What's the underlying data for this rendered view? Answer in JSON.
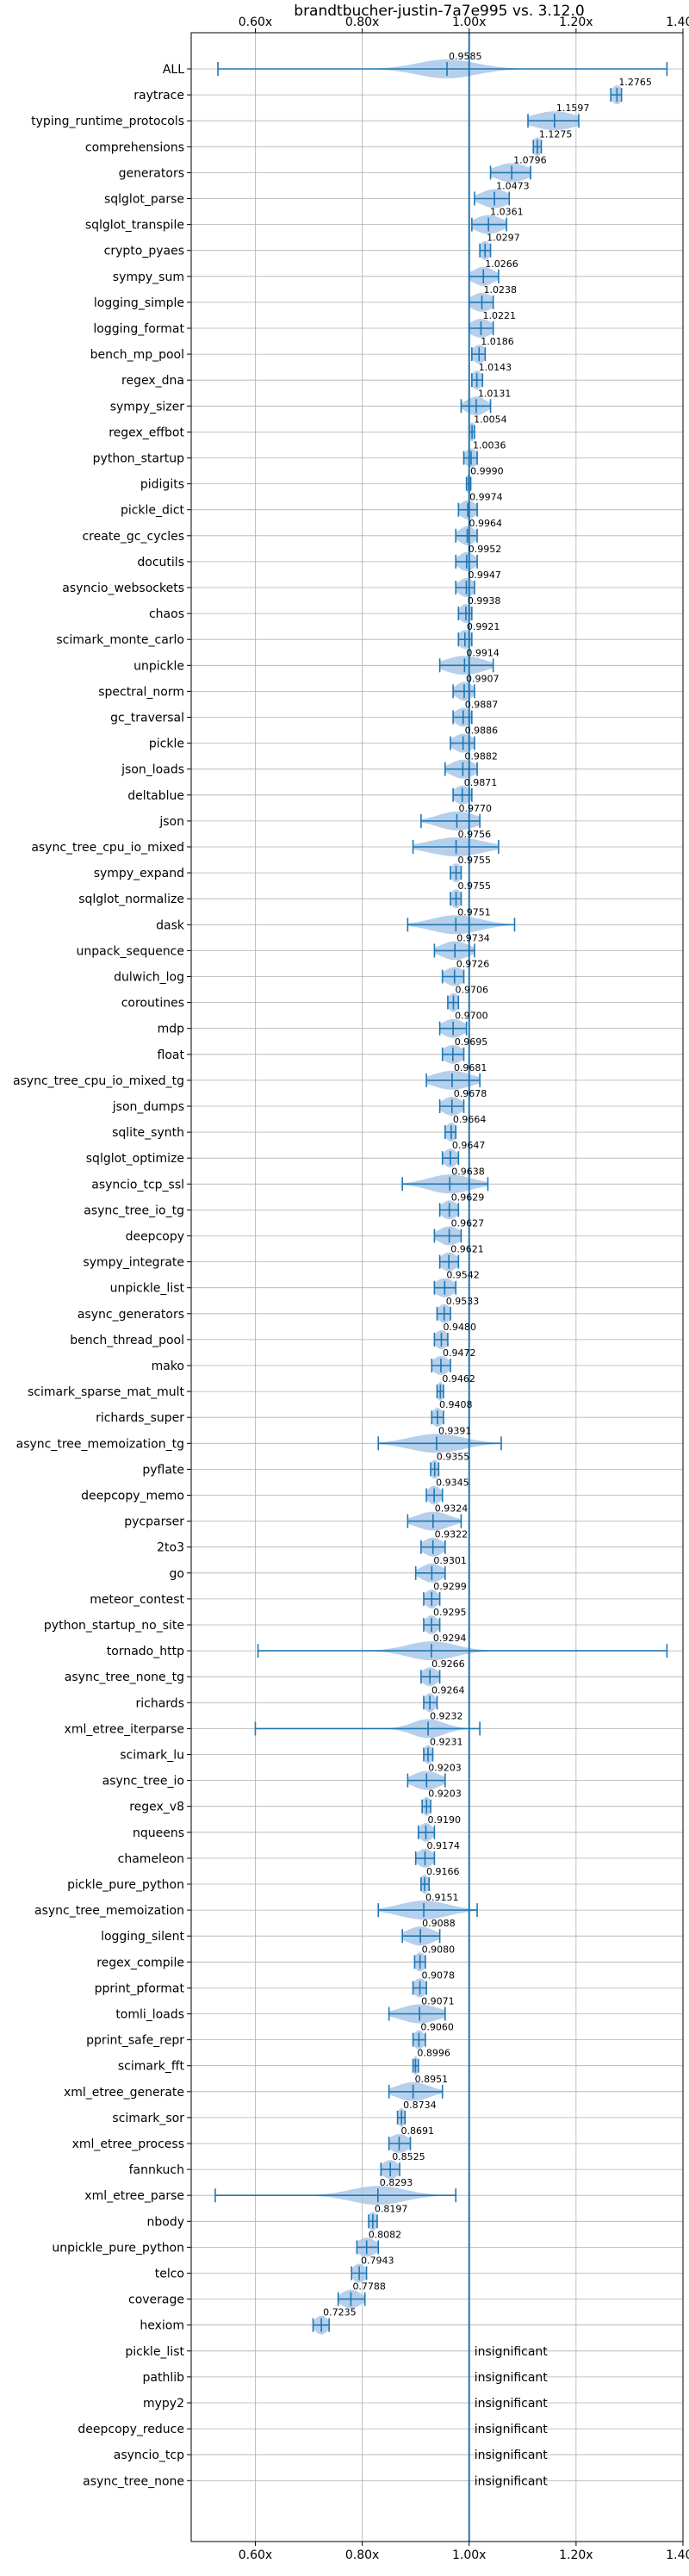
{
  "chart_data": {
    "type": "violin",
    "title": "brandtbucher-justin-7a7e995 vs. 3.12.0",
    "xlim": [
      0.48,
      1.4
    ],
    "x_ticks": [
      "0.60x",
      "0.80x",
      "1.00x",
      "1.20x",
      "1.40x"
    ],
    "x_tick_values": [
      0.6,
      0.8,
      1.0,
      1.2,
      1.4
    ],
    "reference_line": 1.0,
    "grid": true,
    "colors": {
      "accent": "#1f77b4",
      "violin": "#a9c8e8",
      "grid": "#b0b0b0"
    },
    "insignificant_label": "insignificant",
    "benchmarks": [
      {
        "name": "ALL",
        "value": 0.9585,
        "label": "0.9585",
        "min": 0.53,
        "max": 1.37,
        "spread": 0.055
      },
      {
        "name": "raytrace",
        "value": 1.2765,
        "label": "1.2765",
        "min": 1.265,
        "max": 1.285,
        "spread": 0.01
      },
      {
        "name": "typing_runtime_protocols",
        "value": 1.1597,
        "label": "1.1597",
        "min": 1.11,
        "max": 1.205,
        "spread": 0.04
      },
      {
        "name": "comprehensions",
        "value": 1.1275,
        "label": "1.1275",
        "min": 1.12,
        "max": 1.135,
        "spread": 0.008
      },
      {
        "name": "generators",
        "value": 1.0796,
        "label": "1.0796",
        "min": 1.04,
        "max": 1.115,
        "spread": 0.03
      },
      {
        "name": "sqlglot_parse",
        "value": 1.0473,
        "label": "1.0473",
        "min": 1.01,
        "max": 1.075,
        "spread": 0.025
      },
      {
        "name": "sqlglot_transpile",
        "value": 1.0361,
        "label": "1.0361",
        "min": 1.005,
        "max": 1.07,
        "spread": 0.025
      },
      {
        "name": "crypto_pyaes",
        "value": 1.0297,
        "label": "1.0297",
        "min": 1.02,
        "max": 1.04,
        "spread": 0.01
      },
      {
        "name": "sympy_sum",
        "value": 1.0266,
        "label": "1.0266",
        "min": 1.0,
        "max": 1.055,
        "spread": 0.02
      },
      {
        "name": "logging_simple",
        "value": 1.0238,
        "label": "1.0238",
        "min": 1.0,
        "max": 1.045,
        "spread": 0.02
      },
      {
        "name": "logging_format",
        "value": 1.0221,
        "label": "1.0221",
        "min": 1.0,
        "max": 1.045,
        "spread": 0.02
      },
      {
        "name": "bench_mp_pool",
        "value": 1.0186,
        "label": "1.0186",
        "min": 1.005,
        "max": 1.03,
        "spread": 0.012
      },
      {
        "name": "regex_dna",
        "value": 1.0143,
        "label": "1.0143",
        "min": 1.005,
        "max": 1.025,
        "spread": 0.01
      },
      {
        "name": "sympy_sizer",
        "value": 1.0131,
        "label": "1.0131",
        "min": 0.985,
        "max": 1.04,
        "spread": 0.018
      },
      {
        "name": "regex_effbot",
        "value": 1.0054,
        "label": "1.0054",
        "min": 1.0,
        "max": 1.01,
        "spread": 0.006
      },
      {
        "name": "python_startup",
        "value": 1.0036,
        "label": "1.0036",
        "min": 0.99,
        "max": 1.015,
        "spread": 0.012
      },
      {
        "name": "pidigits",
        "value": 0.999,
        "label": "0.9990",
        "min": 0.995,
        "max": 1.003,
        "spread": 0.005
      },
      {
        "name": "pickle_dict",
        "value": 0.9974,
        "label": "0.9974",
        "min": 0.98,
        "max": 1.015,
        "spread": 0.015
      },
      {
        "name": "create_gc_cycles",
        "value": 0.9964,
        "label": "0.9964",
        "min": 0.975,
        "max": 1.015,
        "spread": 0.015
      },
      {
        "name": "docutils",
        "value": 0.9952,
        "label": "0.9952",
        "min": 0.975,
        "max": 1.015,
        "spread": 0.015
      },
      {
        "name": "asyncio_websockets",
        "value": 0.9947,
        "label": "0.9947",
        "min": 0.975,
        "max": 1.01,
        "spread": 0.015
      },
      {
        "name": "chaos",
        "value": 0.9938,
        "label": "0.9938",
        "min": 0.98,
        "max": 1.005,
        "spread": 0.012
      },
      {
        "name": "scimark_monte_carlo",
        "value": 0.9921,
        "label": "0.9921",
        "min": 0.98,
        "max": 1.005,
        "spread": 0.012
      },
      {
        "name": "unpickle",
        "value": 0.9914,
        "label": "0.9914",
        "min": 0.945,
        "max": 1.045,
        "spread": 0.035
      },
      {
        "name": "spectral_norm",
        "value": 0.9907,
        "label": "0.9907",
        "min": 0.97,
        "max": 1.01,
        "spread": 0.015
      },
      {
        "name": "gc_traversal",
        "value": 0.9887,
        "label": "0.9887",
        "min": 0.97,
        "max": 1.005,
        "spread": 0.015
      },
      {
        "name": "pickle",
        "value": 0.9886,
        "label": "0.9886",
        "min": 0.965,
        "max": 1.01,
        "spread": 0.018
      },
      {
        "name": "json_loads",
        "value": 0.9882,
        "label": "0.9882",
        "min": 0.955,
        "max": 1.015,
        "spread": 0.022
      },
      {
        "name": "deltablue",
        "value": 0.9871,
        "label": "0.9871",
        "min": 0.97,
        "max": 1.005,
        "spread": 0.015
      },
      {
        "name": "json",
        "value": 0.977,
        "label": "0.9770",
        "min": 0.91,
        "max": 1.02,
        "spread": 0.035
      },
      {
        "name": "async_tree_cpu_io_mixed",
        "value": 0.9756,
        "label": "0.9756",
        "min": 0.895,
        "max": 1.055,
        "spread": 0.05
      },
      {
        "name": "sympy_expand",
        "value": 0.9755,
        "label": "0.9755",
        "min": 0.965,
        "max": 0.985,
        "spread": 0.01
      },
      {
        "name": "sqlglot_normalize",
        "value": 0.9755,
        "label": "0.9755",
        "min": 0.965,
        "max": 0.985,
        "spread": 0.01
      },
      {
        "name": "dask",
        "value": 0.9751,
        "label": "0.9751",
        "min": 0.885,
        "max": 1.085,
        "spread": 0.045
      },
      {
        "name": "unpack_sequence",
        "value": 0.9734,
        "label": "0.9734",
        "min": 0.935,
        "max": 1.01,
        "spread": 0.025
      },
      {
        "name": "dulwich_log",
        "value": 0.9726,
        "label": "0.9726",
        "min": 0.95,
        "max": 0.99,
        "spread": 0.018
      },
      {
        "name": "coroutines",
        "value": 0.9706,
        "label": "0.9706",
        "min": 0.96,
        "max": 0.98,
        "spread": 0.01
      },
      {
        "name": "mdp",
        "value": 0.97,
        "label": "0.9700",
        "min": 0.945,
        "max": 0.995,
        "spread": 0.02
      },
      {
        "name": "float",
        "value": 0.9695,
        "label": "0.9695",
        "min": 0.95,
        "max": 0.99,
        "spread": 0.018
      },
      {
        "name": "async_tree_cpu_io_mixed_tg",
        "value": 0.9681,
        "label": "0.9681",
        "min": 0.92,
        "max": 1.02,
        "spread": 0.035
      },
      {
        "name": "json_dumps",
        "value": 0.9678,
        "label": "0.9678",
        "min": 0.945,
        "max": 0.99,
        "spread": 0.018
      },
      {
        "name": "sqlite_synth",
        "value": 0.9664,
        "label": "0.9664",
        "min": 0.955,
        "max": 0.975,
        "spread": 0.01
      },
      {
        "name": "sqlglot_optimize",
        "value": 0.9647,
        "label": "0.9647",
        "min": 0.95,
        "max": 0.98,
        "spread": 0.012
      },
      {
        "name": "asyncio_tcp_ssl",
        "value": 0.9638,
        "label": "0.9638",
        "min": 0.875,
        "max": 1.035,
        "spread": 0.04
      },
      {
        "name": "async_tree_io_tg",
        "value": 0.9629,
        "label": "0.9629",
        "min": 0.945,
        "max": 0.98,
        "spread": 0.015
      },
      {
        "name": "deepcopy",
        "value": 0.9627,
        "label": "0.9627",
        "min": 0.935,
        "max": 0.985,
        "spread": 0.02
      },
      {
        "name": "sympy_integrate",
        "value": 0.9621,
        "label": "0.9621",
        "min": 0.945,
        "max": 0.98,
        "spread": 0.015
      },
      {
        "name": "unpickle_list",
        "value": 0.9542,
        "label": "0.9542",
        "min": 0.935,
        "max": 0.975,
        "spread": 0.018
      },
      {
        "name": "async_generators",
        "value": 0.9533,
        "label": "0.9533",
        "min": 0.94,
        "max": 0.965,
        "spread": 0.012
      },
      {
        "name": "bench_thread_pool",
        "value": 0.948,
        "label": "0.9480",
        "min": 0.935,
        "max": 0.96,
        "spread": 0.012
      },
      {
        "name": "mako",
        "value": 0.9472,
        "label": "0.9472",
        "min": 0.93,
        "max": 0.965,
        "spread": 0.015
      },
      {
        "name": "scimark_sparse_mat_mult",
        "value": 0.9462,
        "label": "0.9462",
        "min": 0.94,
        "max": 0.952,
        "spread": 0.006
      },
      {
        "name": "richards_super",
        "value": 0.9408,
        "label": "0.9408",
        "min": 0.93,
        "max": 0.952,
        "spread": 0.01
      },
      {
        "name": "async_tree_memoization_tg",
        "value": 0.9391,
        "label": "0.9391",
        "min": 0.83,
        "max": 1.06,
        "spread": 0.05
      },
      {
        "name": "pyflate",
        "value": 0.9355,
        "label": "0.9355",
        "min": 0.928,
        "max": 0.943,
        "spread": 0.008
      },
      {
        "name": "deepcopy_memo",
        "value": 0.9345,
        "label": "0.9345",
        "min": 0.92,
        "max": 0.95,
        "spread": 0.012
      },
      {
        "name": "pycparser",
        "value": 0.9324,
        "label": "0.9324",
        "min": 0.885,
        "max": 0.985,
        "spread": 0.03
      },
      {
        "name": "2to3",
        "value": 0.9322,
        "label": "0.9322",
        "min": 0.91,
        "max": 0.955,
        "spread": 0.018
      },
      {
        "name": "go",
        "value": 0.9301,
        "label": "0.9301",
        "min": 0.9,
        "max": 0.955,
        "spread": 0.02
      },
      {
        "name": "meteor_contest",
        "value": 0.9299,
        "label": "0.9299",
        "min": 0.915,
        "max": 0.945,
        "spread": 0.012
      },
      {
        "name": "python_startup_no_site",
        "value": 0.9295,
        "label": "0.9295",
        "min": 0.915,
        "max": 0.945,
        "spread": 0.012
      },
      {
        "name": "tornado_http",
        "value": 0.9294,
        "label": "0.9294",
        "min": 0.605,
        "max": 1.37,
        "spread": 0.045
      },
      {
        "name": "async_tree_none_tg",
        "value": 0.9266,
        "label": "0.9266",
        "min": 0.91,
        "max": 0.945,
        "spread": 0.015
      },
      {
        "name": "richards",
        "value": 0.9264,
        "label": "0.9264",
        "min": 0.915,
        "max": 0.94,
        "spread": 0.01
      },
      {
        "name": "xml_etree_iterparse",
        "value": 0.9232,
        "label": "0.9232",
        "min": 0.6,
        "max": 1.02,
        "spread": 0.03
      },
      {
        "name": "scimark_lu",
        "value": 0.9231,
        "label": "0.9231",
        "min": 0.915,
        "max": 0.932,
        "spread": 0.008
      },
      {
        "name": "async_tree_io",
        "value": 0.9203,
        "label": "0.9203",
        "min": 0.885,
        "max": 0.955,
        "spread": 0.025
      },
      {
        "name": "regex_v8",
        "value": 0.9203,
        "label": "0.9203",
        "min": 0.912,
        "max": 0.928,
        "spread": 0.008
      },
      {
        "name": "nqueens",
        "value": 0.919,
        "label": "0.9190",
        "min": 0.905,
        "max": 0.935,
        "spread": 0.012
      },
      {
        "name": "chameleon",
        "value": 0.9174,
        "label": "0.9174",
        "min": 0.9,
        "max": 0.935,
        "spread": 0.015
      },
      {
        "name": "pickle_pure_python",
        "value": 0.9166,
        "label": "0.9166",
        "min": 0.91,
        "max": 0.925,
        "spread": 0.008
      },
      {
        "name": "async_tree_memoization",
        "value": 0.9151,
        "label": "0.9151",
        "min": 0.83,
        "max": 1.015,
        "spread": 0.045
      },
      {
        "name": "logging_silent",
        "value": 0.9088,
        "label": "0.9088",
        "min": 0.875,
        "max": 0.945,
        "spread": 0.025
      },
      {
        "name": "regex_compile",
        "value": 0.908,
        "label": "0.9080",
        "min": 0.898,
        "max": 0.918,
        "spread": 0.01
      },
      {
        "name": "pprint_pformat",
        "value": 0.9078,
        "label": "0.9078",
        "min": 0.895,
        "max": 0.92,
        "spread": 0.012
      },
      {
        "name": "tomli_loads",
        "value": 0.9071,
        "label": "0.9071",
        "min": 0.85,
        "max": 0.955,
        "spread": 0.035
      },
      {
        "name": "pprint_safe_repr",
        "value": 0.906,
        "label": "0.9060",
        "min": 0.895,
        "max": 0.918,
        "spread": 0.01
      },
      {
        "name": "scimark_fft",
        "value": 0.8996,
        "label": "0.8996",
        "min": 0.895,
        "max": 0.905,
        "spread": 0.005
      },
      {
        "name": "xml_etree_generate",
        "value": 0.8951,
        "label": "0.8951",
        "min": 0.85,
        "max": 0.95,
        "spread": 0.03
      },
      {
        "name": "scimark_sor",
        "value": 0.8734,
        "label": "0.8734",
        "min": 0.866,
        "max": 0.88,
        "spread": 0.007
      },
      {
        "name": "xml_etree_process",
        "value": 0.8691,
        "label": "0.8691",
        "min": 0.85,
        "max": 0.89,
        "spread": 0.018
      },
      {
        "name": "fannkuch",
        "value": 0.8525,
        "label": "0.8525",
        "min": 0.835,
        "max": 0.87,
        "spread": 0.015
      },
      {
        "name": "xml_etree_parse",
        "value": 0.8293,
        "label": "0.8293",
        "min": 0.525,
        "max": 0.975,
        "spread": 0.05
      },
      {
        "name": "nbody",
        "value": 0.8197,
        "label": "0.8197",
        "min": 0.812,
        "max": 0.828,
        "spread": 0.008
      },
      {
        "name": "unpickle_pure_python",
        "value": 0.8082,
        "label": "0.8082",
        "min": 0.79,
        "max": 0.83,
        "spread": 0.018
      },
      {
        "name": "telco",
        "value": 0.7943,
        "label": "0.7943",
        "min": 0.78,
        "max": 0.808,
        "spread": 0.012
      },
      {
        "name": "coverage",
        "value": 0.7788,
        "label": "0.7788",
        "min": 0.755,
        "max": 0.805,
        "spread": 0.018
      },
      {
        "name": "hexiom",
        "value": 0.7235,
        "label": "0.7235",
        "min": 0.708,
        "max": 0.738,
        "spread": 0.012
      },
      {
        "name": "pickle_list",
        "value": null,
        "label": "",
        "insignificant": true
      },
      {
        "name": "pathlib",
        "value": null,
        "label": "",
        "insignificant": true
      },
      {
        "name": "mypy2",
        "value": null,
        "label": "",
        "insignificant": true
      },
      {
        "name": "deepcopy_reduce",
        "value": null,
        "label": "",
        "insignificant": true
      },
      {
        "name": "asyncio_tcp",
        "value": null,
        "label": "",
        "insignificant": true
      },
      {
        "name": "async_tree_none",
        "value": null,
        "label": "",
        "insignificant": true
      }
    ]
  }
}
